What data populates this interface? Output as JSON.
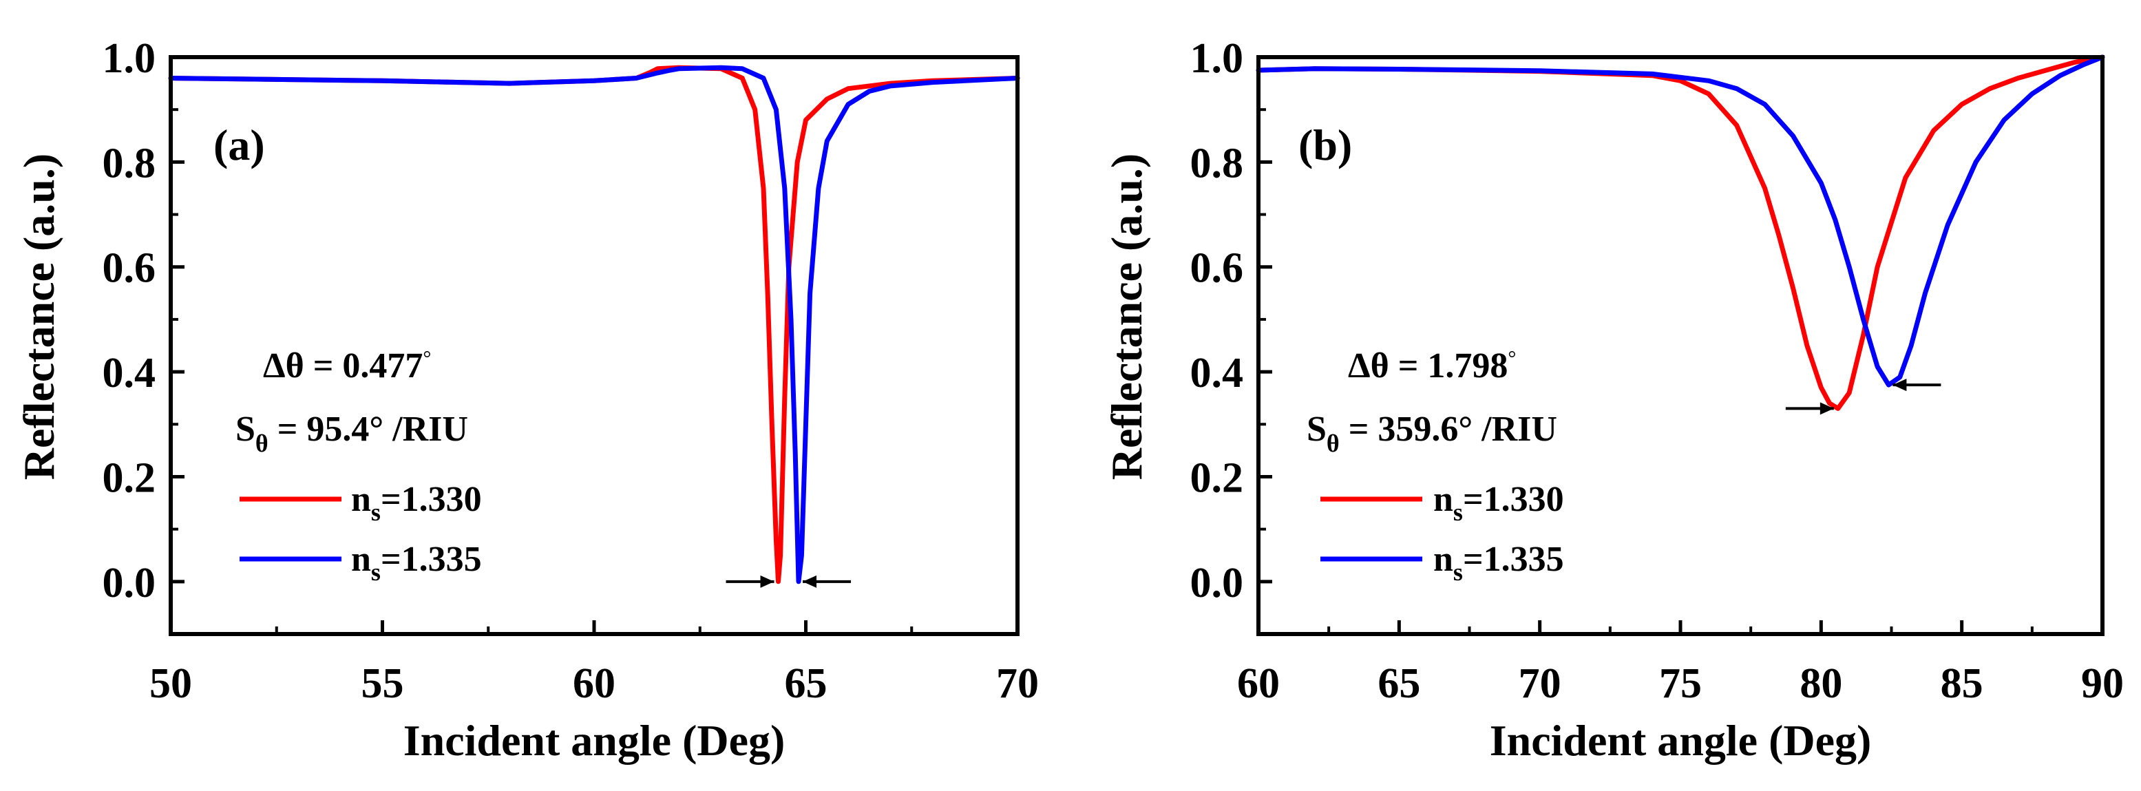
{
  "chart_data": [
    {
      "type": "line",
      "panel_label": "(a)",
      "xlabel": "Incident angle (Deg)",
      "ylabel": "Reflectance (a.u.)",
      "xlim": [
        50,
        70
      ],
      "ylim": [
        -0.1,
        1.0
      ],
      "xticks": [
        50,
        55,
        60,
        65,
        70
      ],
      "xtick_labels": [
        "50",
        "55",
        "60",
        "65",
        "70"
      ],
      "yticks": [
        0.0,
        0.2,
        0.4,
        0.6,
        0.8,
        1.0
      ],
      "ytick_labels": [
        "0.0",
        "0.2",
        "0.4",
        "0.6",
        "0.8",
        "1.0"
      ],
      "annotation": {
        "delta_prefix": "Δθ = ",
        "delta_value": "0.477",
        "delta_unit": "°",
        "sens_base": "S",
        "sens_sub": "θ",
        "sens_eq": " = ",
        "sens_value": "95.4",
        "sens_unit": "° /RIU"
      },
      "legend": [
        {
          "base": "n",
          "sub": "s",
          "label": "=1.330",
          "color": "#ff0000"
        },
        {
          "base": "n",
          "sub": "s",
          "label": "=1.335",
          "color": "#0000ff"
        }
      ],
      "series": [
        {
          "name": "ns=1.330",
          "color": "#ff0000",
          "x": [
            50,
            52,
            55,
            58,
            60,
            61,
            61.3,
            61.5,
            62,
            63,
            63.5,
            63.8,
            64.0,
            64.1,
            64.2,
            64.3,
            64.35,
            64.4,
            64.5,
            64.6,
            64.8,
            65,
            65.5,
            66,
            67,
            68,
            70
          ],
          "y": [
            0.96,
            0.958,
            0.955,
            0.95,
            0.955,
            0.96,
            0.97,
            0.978,
            0.98,
            0.978,
            0.96,
            0.9,
            0.75,
            0.55,
            0.3,
            0.08,
            0.0,
            0.05,
            0.35,
            0.6,
            0.8,
            0.88,
            0.92,
            0.94,
            0.95,
            0.955,
            0.96
          ]
        },
        {
          "name": "ns=1.335",
          "color": "#0000ff",
          "x": [
            50,
            52,
            55,
            58,
            60,
            61,
            61.5,
            61.8,
            62,
            63,
            63.5,
            64,
            64.3,
            64.5,
            64.65,
            64.75,
            64.83,
            64.9,
            65.0,
            65.1,
            65.3,
            65.5,
            66,
            66.5,
            67,
            68,
            70
          ],
          "y": [
            0.96,
            0.958,
            0.955,
            0.95,
            0.955,
            0.96,
            0.97,
            0.975,
            0.978,
            0.98,
            0.978,
            0.96,
            0.9,
            0.75,
            0.5,
            0.25,
            0.0,
            0.05,
            0.3,
            0.55,
            0.75,
            0.84,
            0.91,
            0.935,
            0.945,
            0.952,
            0.96
          ]
        }
      ],
      "arrows": [
        {
          "x": 64.35,
          "y": 0.0,
          "direction": "right"
        },
        {
          "x": 64.83,
          "y": 0.0,
          "direction": "left"
        }
      ]
    },
    {
      "type": "line",
      "panel_label": "(b)",
      "xlabel": "Incident angle (Deg)",
      "ylabel": "Reflectance (a.u.)",
      "xlim": [
        60,
        90
      ],
      "ylim": [
        -0.1,
        1.0
      ],
      "xticks": [
        60,
        65,
        70,
        75,
        80,
        85,
        90
      ],
      "xtick_labels": [
        "60",
        "65",
        "70",
        "75",
        "80",
        "85",
        "90"
      ],
      "yticks": [
        0.0,
        0.2,
        0.4,
        0.6,
        0.8,
        1.0
      ],
      "ytick_labels": [
        "0.0",
        "0.2",
        "0.4",
        "0.6",
        "0.8",
        "1.0"
      ],
      "annotation": {
        "delta_prefix": "Δθ = ",
        "delta_value": "1.798",
        "delta_unit": "°",
        "sens_base": "S",
        "sens_sub": "θ",
        "sens_eq": " = ",
        "sens_value": "359.6",
        "sens_unit": "° /RIU"
      },
      "legend": [
        {
          "base": "n",
          "sub": "s",
          "label": "=1.330",
          "color": "#ff0000"
        },
        {
          "base": "n",
          "sub": "s",
          "label": "=1.335",
          "color": "#0000ff"
        }
      ],
      "series": [
        {
          "name": "ns=1.330",
          "color": "#ff0000",
          "x": [
            60,
            62,
            65,
            70,
            74,
            75,
            76,
            77,
            78,
            78.5,
            79,
            79.5,
            80,
            80.3,
            80.6,
            81,
            81.5,
            82,
            83,
            84,
            85,
            86,
            87,
            88,
            89,
            90
          ],
          "y": [
            0.975,
            0.978,
            0.977,
            0.973,
            0.965,
            0.955,
            0.93,
            0.87,
            0.75,
            0.66,
            0.56,
            0.45,
            0.37,
            0.34,
            0.33,
            0.36,
            0.47,
            0.6,
            0.77,
            0.86,
            0.91,
            0.94,
            0.96,
            0.975,
            0.99,
            1.0
          ]
        },
        {
          "name": "ns=1.335",
          "color": "#0000ff",
          "x": [
            60,
            62,
            65,
            70,
            74,
            76,
            77,
            78,
            79,
            80,
            80.5,
            81,
            81.5,
            82,
            82.4,
            82.8,
            83.2,
            83.7,
            84.5,
            85.5,
            86.5,
            87.5,
            88.5,
            89.3,
            90
          ],
          "y": [
            0.975,
            0.978,
            0.977,
            0.974,
            0.968,
            0.955,
            0.94,
            0.91,
            0.85,
            0.76,
            0.69,
            0.6,
            0.5,
            0.41,
            0.375,
            0.39,
            0.45,
            0.55,
            0.68,
            0.8,
            0.88,
            0.93,
            0.965,
            0.985,
            1.0
          ]
        }
      ],
      "arrows": [
        {
          "x": 80.6,
          "y": 0.33,
          "direction": "right"
        },
        {
          "x": 82.4,
          "y": 0.375,
          "direction": "left"
        }
      ]
    }
  ]
}
